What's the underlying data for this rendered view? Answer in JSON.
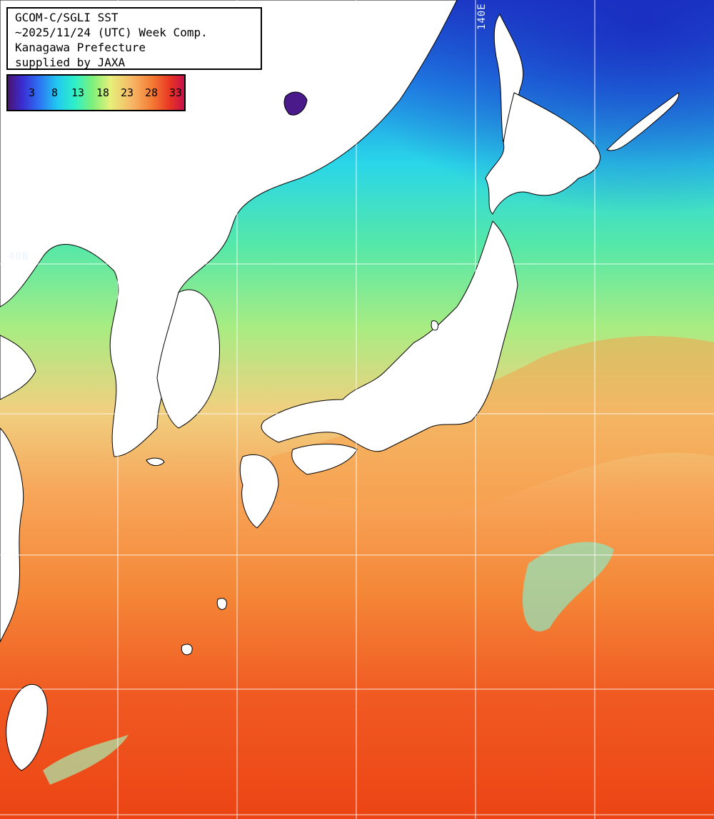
{
  "info": {
    "line1": "GCOM-C/SGLI SST",
    "line2": "~2025/11/24 (UTC) Week Comp.",
    "line3": "Kanagawa Prefecture",
    "line4": "supplied by JAXA"
  },
  "legend": {
    "ticks": [
      "3",
      "8",
      "13",
      "18",
      "23",
      "28",
      "33"
    ],
    "colors": [
      "#4b1470",
      "#2d6cf2",
      "#22c8f0",
      "#7ef07a",
      "#e6f07a",
      "#f47a33",
      "#c8104a"
    ]
  },
  "grid_labels": {
    "lon_140": "140E",
    "lat_40": "40N"
  },
  "colors": {
    "land": "#ffffff",
    "grid": "#ffffff",
    "cold": "#1f3fd8",
    "cool": "#28c8f0",
    "mild": "#7ef07a",
    "warm": "#f7b867",
    "hot": "#f06a28",
    "hottest": "#e83a18"
  }
}
